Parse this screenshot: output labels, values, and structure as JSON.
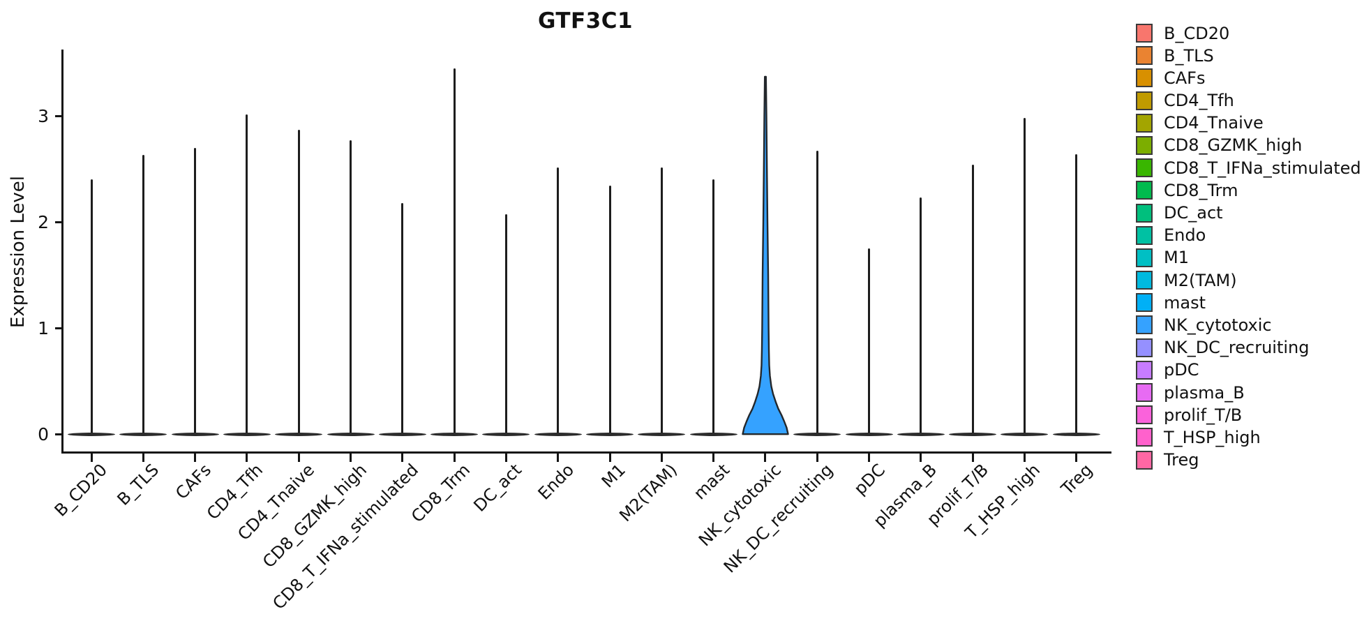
{
  "title": "GTF3C1",
  "y_axis": {
    "label": "Expression Level"
  },
  "chart_data": {
    "type": "violin",
    "title": "GTF3C1",
    "xlabel": "",
    "ylabel": "Expression Level",
    "ylim": [
      0,
      3.63
    ],
    "yticks": [
      0,
      1,
      2,
      3
    ],
    "grid": false,
    "legend_position": "right",
    "categories": [
      "B_CD20",
      "B_TLS",
      "CAFs",
      "CD4_Tfh",
      "CD4_Tnaive",
      "CD8_GZMK_high",
      "CD8_T_IFNa_stimulated",
      "CD8_Trm",
      "DC_act",
      "Endo",
      "M1",
      "M2(TAM)",
      "mast",
      "NK_cytotoxic",
      "NK_DC_recruiting",
      "pDC",
      "plasma_B",
      "prolif_T/B",
      "T_HSP_high",
      "Treg"
    ],
    "colors": [
      "#F8766D",
      "#EA8331",
      "#D89000",
      "#C09B00",
      "#A3A500",
      "#7CAE00",
      "#39B600",
      "#00BB4E",
      "#00BF7D",
      "#00C1A3",
      "#00BFC4",
      "#00BAE0",
      "#00B0F6",
      "#35A2FF",
      "#9590FF",
      "#C77CFF",
      "#E76BF3",
      "#FA62DB",
      "#FF61CC",
      "#FF67A4"
    ],
    "peak_values": [
      2.4,
      2.63,
      2.7,
      3.01,
      2.87,
      2.77,
      2.18,
      3.45,
      2.07,
      2.51,
      2.34,
      2.51,
      2.4,
      3.37,
      2.67,
      1.75,
      2.23,
      2.54,
      2.98,
      2.64
    ],
    "baseline_value": 0,
    "highlight": {
      "category": "NK_cytotoxic",
      "fill": "#35A2FF",
      "bulge_top_value": 0.55,
      "profile": [
        [
          3.37,
          0.025
        ],
        [
          3.0,
          0.046
        ],
        [
          2.5,
          0.068
        ],
        [
          2.0,
          0.092
        ],
        [
          1.5,
          0.123
        ],
        [
          1.0,
          0.142
        ],
        [
          0.8,
          0.154
        ],
        [
          0.65,
          0.169
        ],
        [
          0.55,
          0.2
        ],
        [
          0.45,
          0.26
        ],
        [
          0.38,
          0.34
        ],
        [
          0.3,
          0.46
        ],
        [
          0.24,
          0.57
        ],
        [
          0.18,
          0.71
        ],
        [
          0.12,
          0.83
        ],
        [
          0.06,
          0.94
        ],
        [
          0.0,
          1.0
        ]
      ]
    }
  },
  "legend": {
    "items": [
      {
        "label": "B_CD20",
        "color": "#F8766D"
      },
      {
        "label": "B_TLS",
        "color": "#EA8331"
      },
      {
        "label": "CAFs",
        "color": "#D89000"
      },
      {
        "label": "CD4_Tfh",
        "color": "#C09B00"
      },
      {
        "label": "CD4_Tnaive",
        "color": "#A3A500"
      },
      {
        "label": "CD8_GZMK_high",
        "color": "#7CAE00"
      },
      {
        "label": "CD8_T_IFNa_stimulated",
        "color": "#39B600"
      },
      {
        "label": "CD8_Trm",
        "color": "#00BB4E"
      },
      {
        "label": "DC_act",
        "color": "#00BF7D"
      },
      {
        "label": "Endo",
        "color": "#00C1A3"
      },
      {
        "label": "M1",
        "color": "#00BFC4"
      },
      {
        "label": "M2(TAM)",
        "color": "#00BAE0"
      },
      {
        "label": "mast",
        "color": "#00B0F6"
      },
      {
        "label": "NK_cytotoxic",
        "color": "#35A2FF"
      },
      {
        "label": "NK_DC_recruiting",
        "color": "#9590FF"
      },
      {
        "label": "pDC",
        "color": "#C77CFF"
      },
      {
        "label": "plasma_B",
        "color": "#E76BF3"
      },
      {
        "label": "prolif_T/B",
        "color": "#FA62DB"
      },
      {
        "label": "T_HSP_high",
        "color": "#FF61CC"
      },
      {
        "label": "Treg",
        "color": "#FF67A4"
      }
    ]
  }
}
